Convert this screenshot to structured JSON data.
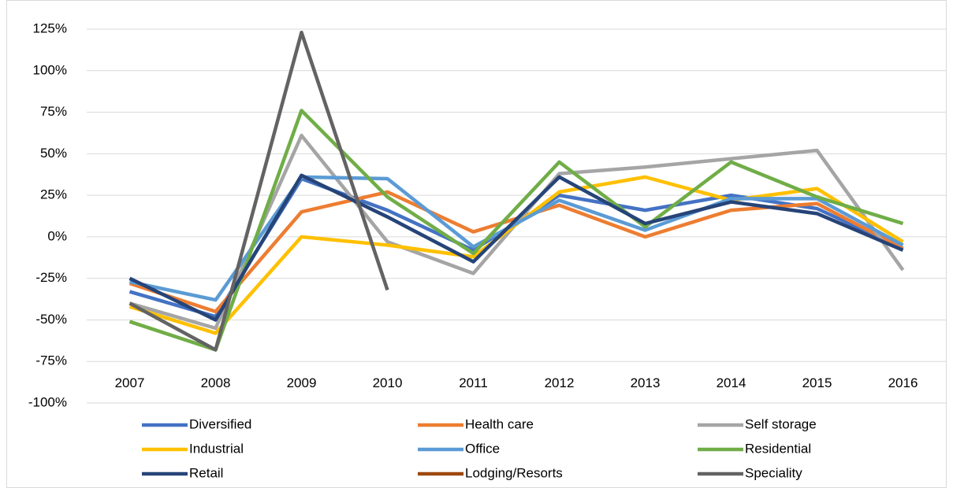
{
  "chart_data": {
    "type": "line",
    "categories": [
      "2007",
      "2008",
      "2009",
      "2010",
      "2011",
      "2012",
      "2013",
      "2014",
      "2015",
      "2016"
    ],
    "series": [
      {
        "name": "Diversified",
        "color": "#4472c4",
        "values": [
          -33,
          -48,
          35,
          16,
          -8,
          25,
          16,
          25,
          17,
          -7
        ]
      },
      {
        "name": "Health care",
        "color": "#ed7d31",
        "values": [
          -28,
          -45,
          15,
          27,
          3,
          19,
          0,
          16,
          20,
          -7
        ]
      },
      {
        "name": "Self storage",
        "color": "#a5a5a5",
        "values": [
          -40,
          -55,
          61,
          -3,
          -22,
          38,
          42,
          47,
          52,
          -20
        ]
      },
      {
        "name": "Industrial",
        "color": "#ffc000",
        "values": [
          -42,
          -58,
          0,
          -5,
          -12,
          27,
          36,
          22,
          29,
          -3
        ]
      },
      {
        "name": "Office",
        "color": "#5b9bd5",
        "values": [
          -27,
          -38,
          36,
          35,
          -6,
          22,
          4,
          23,
          23,
          -5
        ]
      },
      {
        "name": "Residential",
        "color": "#70ad47",
        "values": [
          -51,
          -68,
          76,
          24,
          -10,
          45,
          6,
          45,
          24,
          8
        ]
      },
      {
        "name": "Retail",
        "color": "#264478",
        "values": [
          -25,
          -50,
          37,
          12,
          -15,
          36,
          8,
          21,
          14,
          -8
        ]
      },
      {
        "name": "Lodging/Resorts",
        "color": "#9e480e",
        "values": [
          null,
          null,
          null,
          null,
          null,
          null,
          null,
          null,
          null,
          null
        ]
      },
      {
        "name": "Speciality",
        "color": "#636363",
        "values": [
          -40,
          -68,
          123,
          -32,
          null,
          null,
          null,
          null,
          null,
          null
        ]
      }
    ],
    "ylim": [
      -100,
      125
    ],
    "yticks": [
      {
        "value": -100,
        "label": "-100%"
      },
      {
        "value": -75,
        "label": "-75%"
      },
      {
        "value": -50,
        "label": "-50%"
      },
      {
        "value": -25,
        "label": "-25%"
      },
      {
        "value": 0,
        "label": "0%"
      },
      {
        "value": 25,
        "label": "25%"
      },
      {
        "value": 50,
        "label": "50%"
      },
      {
        "value": 75,
        "label": "75%"
      },
      {
        "value": 100,
        "label": "100%"
      },
      {
        "value": 125,
        "label": "125%"
      }
    ],
    "grid": true
  }
}
